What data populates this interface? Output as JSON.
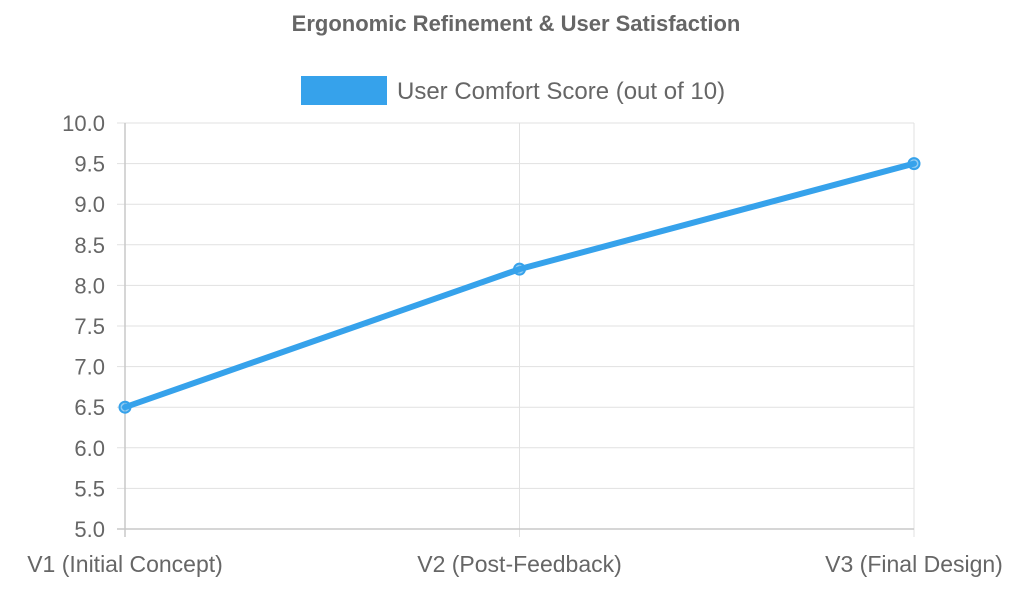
{
  "chart_data": {
    "type": "line",
    "title": "Ergonomic Refinement & User Satisfaction",
    "categories": [
      "V1 (Initial Concept)",
      "V2 (Post-Feedback)",
      "V3 (Final Design)"
    ],
    "series": [
      {
        "name": "User Comfort Score (out of 10)",
        "values": [
          6.5,
          8.2,
          9.5
        ],
        "color": "#36a2eb"
      }
    ],
    "yticks": [
      "10.0",
      "9.5",
      "9.0",
      "8.5",
      "8.0",
      "7.5",
      "7.0",
      "6.5",
      "6.0",
      "5.5",
      "5.0"
    ],
    "ylim": [
      5.0,
      10.0
    ],
    "xlabel": "",
    "ylabel": "",
    "legend_position": "top-center",
    "grid": true
  }
}
